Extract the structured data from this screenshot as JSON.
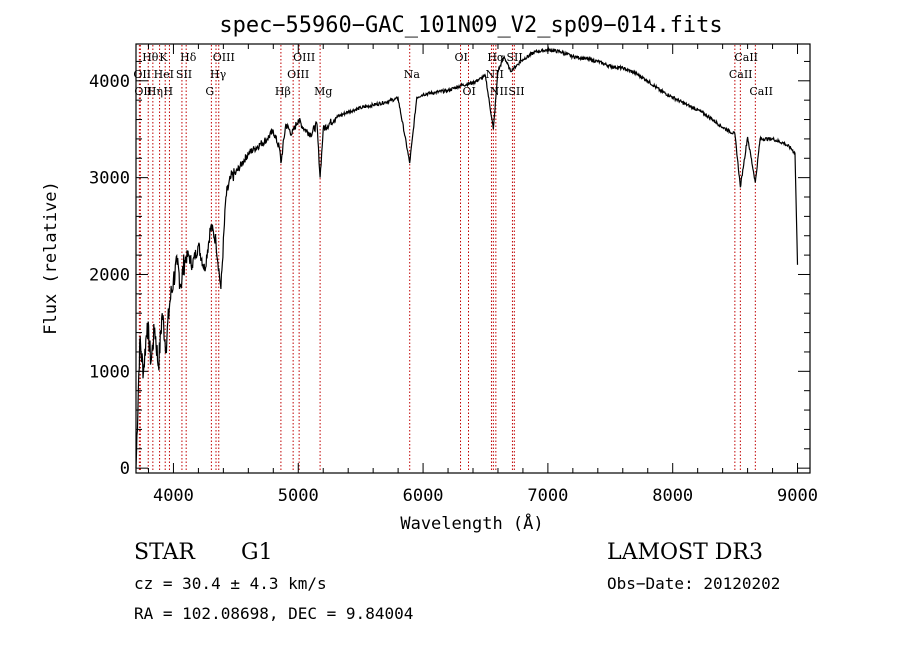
{
  "chart_data": {
    "type": "line",
    "title": "spec−55960−GAC_101N09_V2_sp09−014.fits",
    "xlabel": "Wavelength (Å)",
    "ylabel": "Flux (relative)",
    "xlim": [
      3700,
      9100
    ],
    "ylim": [
      -50,
      4380
    ],
    "xticks": [
      4000,
      5000,
      6000,
      7000,
      8000,
      9000
    ],
    "yticks": [
      0,
      1000,
      2000,
      3000,
      4000
    ],
    "xtick_labels": [
      "4000",
      "5000",
      "6000",
      "7000",
      "8000",
      "9000"
    ],
    "ytick_labels": [
      "0",
      "1000",
      "2000",
      "3000",
      "4000"
    ],
    "grid": false,
    "series": [
      {
        "name": "flux",
        "x": [
          3700,
          3730,
          3760,
          3790,
          3820,
          3850,
          3880,
          3910,
          3940,
          3970,
          4000,
          4030,
          4060,
          4090,
          4120,
          4150,
          4200,
          4250,
          4300,
          4340,
          4380,
          4420,
          4460,
          4500,
          4550,
          4600,
          4650,
          4700,
          4750,
          4800,
          4850,
          4861,
          4900,
          4950,
          5000,
          5050,
          5100,
          5150,
          5175,
          5200,
          5300,
          5400,
          5500,
          5600,
          5700,
          5800,
          5893,
          5950,
          6000,
          6100,
          6200,
          6300,
          6400,
          6500,
          6563,
          6600,
          6650,
          6700,
          6800,
          6900,
          7000,
          7100,
          7200,
          7300,
          7400,
          7500,
          7600,
          7700,
          7800,
          7900,
          8000,
          8100,
          8200,
          8300,
          8400,
          8498,
          8542,
          8600,
          8662,
          8700,
          8800,
          8900,
          8950,
          8980,
          9000
        ],
        "values": [
          0,
          1300,
          1000,
          1500,
          1100,
          1450,
          1050,
          1600,
          1250,
          1700,
          1950,
          2100,
          1900,
          2150,
          2200,
          2100,
          2300,
          2050,
          2500,
          2350,
          1850,
          2800,
          3000,
          3050,
          3150,
          3250,
          3300,
          3350,
          3400,
          3480,
          3300,
          3150,
          3550,
          3450,
          3600,
          3500,
          3450,
          3550,
          3000,
          3500,
          3620,
          3680,
          3720,
          3750,
          3780,
          3820,
          3150,
          3830,
          3860,
          3880,
          3900,
          3950,
          3980,
          4050,
          3500,
          4100,
          4250,
          4100,
          4220,
          4300,
          4320,
          4300,
          4250,
          4230,
          4200,
          4150,
          4130,
          4080,
          4000,
          3900,
          3830,
          3760,
          3700,
          3620,
          3520,
          3450,
          2900,
          3420,
          2950,
          3400,
          3400,
          3350,
          3300,
          3250,
          2100
        ]
      }
    ],
    "reference_lines": [
      {
        "wavelength": 3727,
        "label": "OII",
        "row": 2
      },
      {
        "wavelength": 3735,
        "label": "OII",
        "row": 3
      },
      {
        "wavelength": 3798,
        "label": "Hθ",
        "row": 1
      },
      {
        "wavelength": 3835,
        "label": "Hη",
        "row": 3
      },
      {
        "wavelength": 3889,
        "label": "HeI",
        "row": 2
      },
      {
        "wavelength": 3934,
        "label": "K",
        "row": 1
      },
      {
        "wavelength": 3968,
        "label": "H",
        "row": 3
      },
      {
        "wavelength": 4068,
        "label": "SII",
        "row": 2
      },
      {
        "wavelength": 4102,
        "label": "Hδ",
        "row": 1
      },
      {
        "wavelength": 4304,
        "label": "G",
        "row": 3
      },
      {
        "wavelength": 4341,
        "label": "Hγ",
        "row": 2
      },
      {
        "wavelength": 4363,
        "label": "OIII",
        "row": 1
      },
      {
        "wavelength": 4861,
        "label": "Hβ",
        "row": 3
      },
      {
        "wavelength": 4959,
        "label": "OIII",
        "row": 2
      },
      {
        "wavelength": 5007,
        "label": "OIII",
        "row": 1
      },
      {
        "wavelength": 5175,
        "label": "Mg",
        "row": 3
      },
      {
        "wavelength": 5893,
        "label": "Na",
        "row": 2
      },
      {
        "wavelength": 6300,
        "label": "OI",
        "row": 1
      },
      {
        "wavelength": 6364,
        "label": "OI",
        "row": 3
      },
      {
        "wavelength": 6548,
        "label": "NII",
        "row": 2
      },
      {
        "wavelength": 6563,
        "label": "Hα",
        "row": 1
      },
      {
        "wavelength": 6583,
        "label": "NII",
        "row": 3
      },
      {
        "wavelength": 6716,
        "label": "SII",
        "row": 1
      },
      {
        "wavelength": 6731,
        "label": "SII",
        "row": 3
      },
      {
        "wavelength": 8498,
        "label": "CaII",
        "row": 2
      },
      {
        "wavelength": 8542,
        "label": "CaII",
        "row": 1
      },
      {
        "wavelength": 8662,
        "label": "CaII",
        "row": 3
      }
    ],
    "line_color": "#000000",
    "reference_line_color": "#c00000"
  },
  "info": {
    "object_class": "STAR",
    "subclass": "G1",
    "survey": "LAMOST DR3",
    "cz": "cz = 30.4 ± 4.3 km/s",
    "obs_date": "Obs−Date: 20120202",
    "coords": "RA = 102.08698, DEC =   9.84004"
  }
}
